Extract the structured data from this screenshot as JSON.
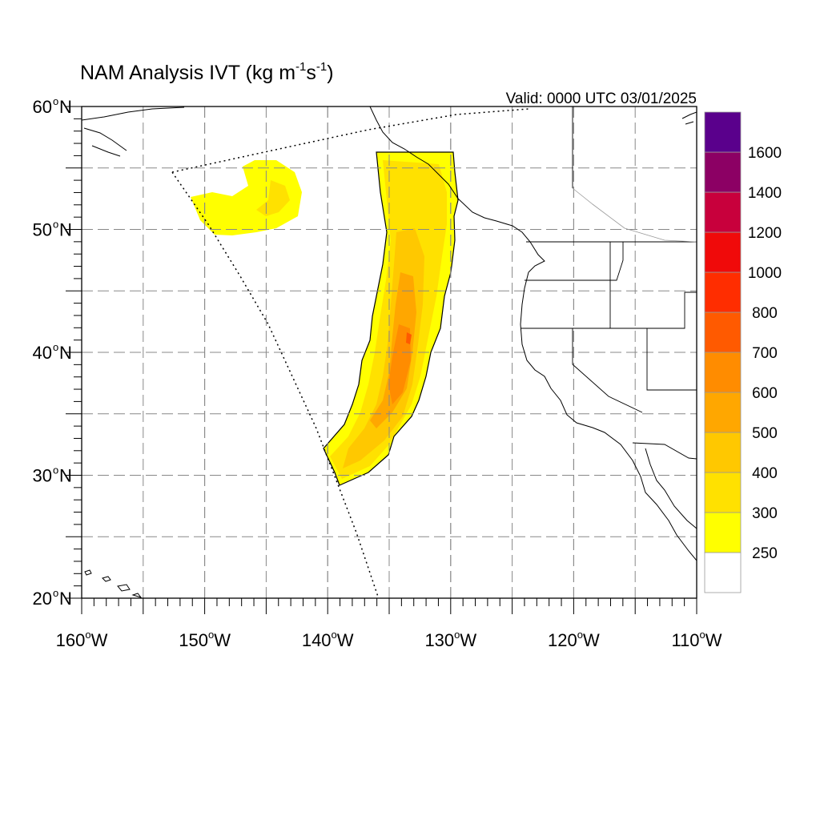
{
  "title": {
    "prefix": "NAM Analysis IVT (kg m",
    "exp1": "-1",
    "mid": "s",
    "exp2": "-1",
    "suffix": ")"
  },
  "valid_label": "Valid: 0000 UTC 03/01/2025",
  "map": {
    "lon_range": [
      -160,
      -110
    ],
    "lat_range": [
      20,
      60
    ],
    "lat_ticks": [
      {
        "value": 60,
        "num": "60",
        "hemi": "N"
      },
      {
        "value": 50,
        "num": "50",
        "hemi": "N"
      },
      {
        "value": 40,
        "num": "40",
        "hemi": "N"
      },
      {
        "value": 30,
        "num": "30",
        "hemi": "N"
      },
      {
        "value": 20,
        "num": "20",
        "hemi": "N"
      }
    ],
    "lon_ticks": [
      {
        "value": -160,
        "num": "160",
        "hemi": "W"
      },
      {
        "value": -150,
        "num": "150",
        "hemi": "W"
      },
      {
        "value": -140,
        "num": "140",
        "hemi": "W"
      },
      {
        "value": -130,
        "num": "130",
        "hemi": "W"
      },
      {
        "value": -120,
        "num": "120",
        "hemi": "W"
      },
      {
        "value": -110,
        "num": "110",
        "hemi": "W"
      }
    ],
    "grid_lons": [
      -155,
      -150,
      -145,
      -140,
      -135,
      -130,
      -125,
      -120,
      -115
    ],
    "grid_lats": [
      25,
      30,
      35,
      40,
      45,
      50,
      55
    ]
  },
  "colorbar": {
    "labels": [
      "250",
      "300",
      "400",
      "500",
      "600",
      "700",
      "800",
      "1000",
      "1200",
      "1400",
      "1600"
    ],
    "colors": [
      "#ffffff",
      "#ffff00",
      "#ffe100",
      "#ffc800",
      "#ffa700",
      "#ff8c00",
      "#ff5a00",
      "#ff2d00",
      "#f00a0a",
      "#c8003c",
      "#8c0064",
      "#5a008c"
    ]
  }
}
